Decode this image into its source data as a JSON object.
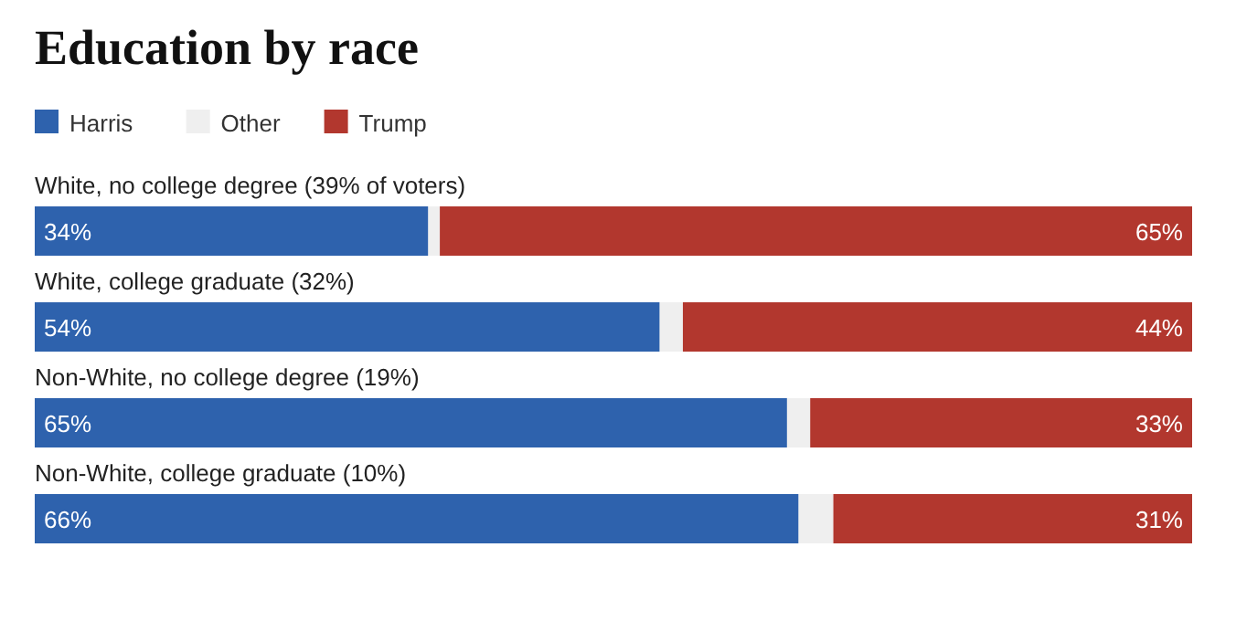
{
  "chart_data": {
    "type": "bar",
    "orientation": "horizontal",
    "stacked": true,
    "title": "Education by race",
    "categories": [
      "White, no college degree (39% of voters)",
      "White, college graduate (32%)",
      "Non-White, no college degree (19%)",
      "Non-White, college graduate (10%)"
    ],
    "series": [
      {
        "name": "Harris",
        "color": "#2e62ad",
        "values": [
          34,
          54,
          65,
          66
        ],
        "value_labels": [
          "34%",
          "54%",
          "65%",
          "66%"
        ]
      },
      {
        "name": "Other",
        "color": "#efefef",
        "values": [
          1,
          2,
          2,
          3
        ]
      },
      {
        "name": "Trump",
        "color": "#b2372e",
        "values": [
          65,
          44,
          33,
          31
        ],
        "value_labels": [
          "65%",
          "44%",
          "33%",
          "31%"
        ]
      }
    ],
    "xlim": [
      0,
      100
    ],
    "legend": "top left"
  }
}
